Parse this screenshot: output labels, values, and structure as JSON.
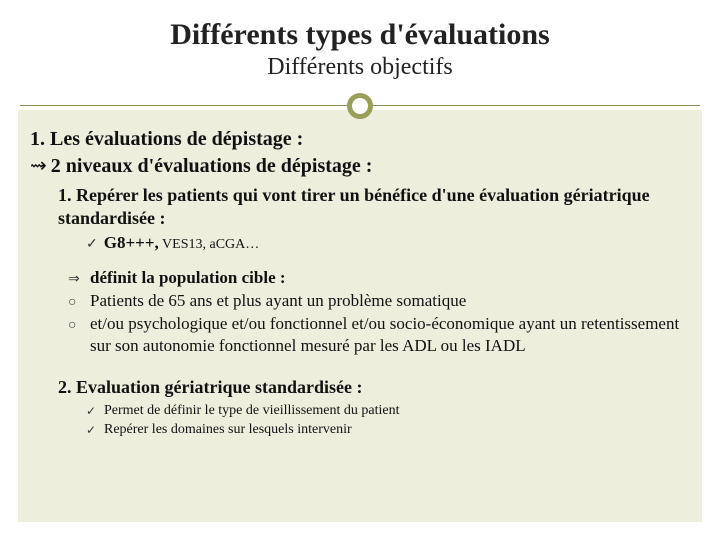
{
  "colors": {
    "page_bg": "#ffffff",
    "panel_bg": "#eeeedd",
    "rule": "#8b8b5a",
    "ring": "#9aa05a",
    "text": "#111111"
  },
  "header": {
    "title": "Différents types d'évaluations",
    "subtitle": "Différents objectifs"
  },
  "section": {
    "heading": "1. Les évaluations de dépistage :",
    "levels_bullet": "⇝",
    "levels": "2 niveaux d'évaluations de dépistage :",
    "item1": {
      "text": "1. Repérer les patients qui vont tirer un bénéfice d'une évaluation gériatrique standardisée :",
      "tool_bullet": "✓",
      "tool_bold": "G8+++,",
      "tool_rest": " VES13, aCGA…"
    },
    "definition": {
      "arrow": "⇒",
      "circle": "○",
      "line1": "définit la population cible :",
      "line2": "Patients de 65 ans et plus ayant un problème somatique",
      "line3": "et/ou psychologique et/ou fonctionnel et/ou socio-économique ayant un retentissement sur son autonomie fonctionnel mesuré par les ADL ou les IADL"
    },
    "item2": {
      "text": "2. Evaluation gériatrique standardisée :",
      "bullet": "✓",
      "line1": "Permet de définir le type de vieillissement du patient",
      "line2": "Repérer les domaines sur lesquels intervenir"
    }
  }
}
